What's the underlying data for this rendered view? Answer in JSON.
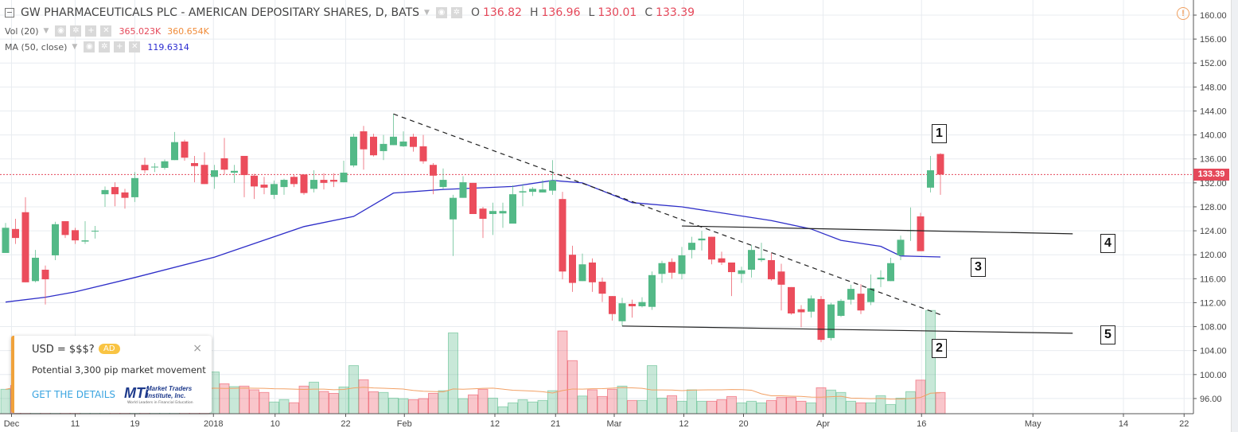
{
  "header": {
    "title": "GW PHARMACEUTICALS PLC - AMERICAN DEPOSITARY SHARES, D, BATS",
    "ohlc": [
      {
        "key": "O",
        "value": "136.82"
      },
      {
        "key": "H",
        "value": "136.96"
      },
      {
        "key": "L",
        "value": "130.01"
      },
      {
        "key": "C",
        "value": "133.39"
      }
    ]
  },
  "indicators": {
    "volume": {
      "label": "Vol (20)",
      "value": "365.023K",
      "ma_value": "360.654K"
    },
    "ma": {
      "label": "MA (50, close)",
      "value": "119.6314"
    }
  },
  "last_price_tag": "133.39",
  "ad": {
    "title": "USD = $$$?",
    "badge": "AD",
    "close": "×",
    "text": "Potential 3,300 pip market movement",
    "link": "GET THE DETAILS",
    "logo_text": "MTi Market Traders Institute, Inc. World Leaders in Financial Education"
  },
  "annotations": [
    "1",
    "2",
    "3",
    "4",
    "5"
  ],
  "colors": {
    "up": "#53b987",
    "down": "#eb4d5c",
    "ma": "#2e2ec8",
    "vol_ma": "#f2a166",
    "last": "#e5485a"
  },
  "chart_data": {
    "type": "candlestick",
    "title": "GW PHARMACEUTICALS PLC - AMERICAN DEPOSITARY SHARES, D, BATS",
    "ylim": [
      94,
      162
    ],
    "y_ticks": [
      "160.00",
      "156.00",
      "152.00",
      "148.00",
      "144.00",
      "140.00",
      "136.00",
      "132.00",
      "128.00",
      "124.00",
      "120.00",
      "116.00",
      "112.00",
      "108.00",
      "104.00",
      "100.00",
      "96.00"
    ],
    "x_ticks": [
      {
        "label": "Dec",
        "bar": 1.6
      },
      {
        "label": "11",
        "bar": 8
      },
      {
        "label": "19",
        "bar": 14
      },
      {
        "label": "2018",
        "bar": 21.9
      },
      {
        "label": "10",
        "bar": 28.1
      },
      {
        "label": "22",
        "bar": 35.2
      },
      {
        "label": "Feb",
        "bar": 41.1
      },
      {
        "label": "12",
        "bar": 50.2
      },
      {
        "label": "21",
        "bar": 56.3
      },
      {
        "label": "Mar",
        "bar": 62.2
      },
      {
        "label": "12",
        "bar": 69.2
      },
      {
        "label": "20",
        "bar": 75.2
      },
      {
        "label": "Apr",
        "bar": 83.2
      },
      {
        "label": "16",
        "bar": 93.1
      },
      {
        "label": "May",
        "bar": 104.3
      },
      {
        "label": "14",
        "bar": 113.4
      },
      {
        "label": "22",
        "bar": 119.5
      }
    ],
    "ohlc": [
      [
        120.3,
        125.3,
        120.3,
        124.5
      ],
      [
        124.3,
        126.0,
        121.8,
        122.8
      ],
      [
        127.1,
        129.6,
        115.4,
        115.4
      ],
      [
        115.6,
        120.8,
        115.4,
        119.5
      ],
      [
        117.5,
        118.2,
        111.7,
        115.9
      ],
      [
        119.9,
        125.5,
        119.1,
        125.1
      ],
      [
        125.6,
        125.6,
        122.8,
        123.3
      ],
      [
        124.1,
        124.5,
        121.8,
        122.4
      ],
      [
        122.2,
        125.6,
        121.8,
        122.4
      ],
      [
        124.0,
        124.8,
        122.7,
        124.0
      ],
      [
        130.1,
        131.4,
        128.0,
        130.8
      ],
      [
        131.3,
        132.1,
        128.1,
        130.1
      ],
      [
        130.4,
        131.0,
        127.7,
        129.5
      ],
      [
        129.6,
        133.8,
        128.8,
        132.8
      ],
      [
        135.0,
        136.2,
        133.6,
        134.1
      ],
      [
        134.6,
        135.3,
        133.8,
        134.7
      ],
      [
        134.5,
        135.9,
        134.2,
        135.6
      ],
      [
        135.8,
        140.5,
        135.8,
        138.8
      ],
      [
        138.9,
        139.2,
        135.7,
        136.2
      ],
      [
        135.3,
        136.5,
        132.1,
        134.8
      ],
      [
        135.0,
        137.1,
        131.8,
        131.8
      ],
      [
        133.0,
        135.0,
        131.0,
        134.1
      ],
      [
        136.1,
        139.5,
        133.4,
        134.2
      ],
      [
        133.7,
        135.0,
        132.0,
        134.0
      ],
      [
        136.5,
        136.5,
        129.6,
        133.3
      ],
      [
        133.2,
        133.5,
        129.3,
        131.4
      ],
      [
        131.7,
        133.0,
        130.1,
        131.2
      ],
      [
        130.0,
        132.4,
        129.3,
        131.8
      ],
      [
        131.3,
        132.7,
        130.0,
        132.5
      ],
      [
        133.0,
        133.4,
        131.3,
        131.8
      ],
      [
        133.4,
        133.4,
        130.0,
        130.3
      ],
      [
        131.0,
        134.1,
        130.4,
        132.5
      ],
      [
        132.5,
        133.6,
        130.9,
        132.0
      ],
      [
        132.5,
        133.6,
        131.3,
        132.2
      ],
      [
        132.1,
        135.7,
        132.1,
        133.7
      ],
      [
        134.9,
        140.2,
        134.6,
        139.7
      ],
      [
        140.6,
        141.5,
        134.2,
        137.6
      ],
      [
        139.7,
        140.2,
        136.4,
        136.6
      ],
      [
        137.3,
        140.0,
        135.8,
        138.5
      ],
      [
        138.3,
        143.5,
        138.3,
        139.7
      ],
      [
        138.1,
        140.6,
        138.0,
        138.9
      ],
      [
        139.7,
        140.2,
        137.2,
        138.0
      ],
      [
        138.1,
        140.0,
        135.2,
        135.6
      ],
      [
        135.0,
        135.3,
        130.1,
        133.2
      ],
      [
        131.3,
        134.4,
        131.0,
        132.5
      ],
      [
        125.9,
        130.0,
        119.8,
        129.5
      ],
      [
        129.5,
        133.1,
        129.5,
        132.1
      ],
      [
        132.0,
        132.0,
        126.8,
        126.8
      ],
      [
        127.7,
        128.0,
        122.8,
        126.0
      ],
      [
        126.8,
        128.7,
        123.3,
        127.3
      ],
      [
        126.9,
        128.7,
        124.5,
        127.3
      ],
      [
        125.2,
        131.6,
        125.2,
        130.1
      ],
      [
        130.4,
        131.8,
        128.1,
        130.6
      ],
      [
        130.5,
        131.3,
        129.8,
        131.0
      ],
      [
        130.4,
        132.5,
        130.4,
        130.9
      ],
      [
        130.7,
        135.8,
        130.0,
        132.4
      ],
      [
        129.3,
        130.5,
        115.9,
        117.2
      ],
      [
        120.0,
        121.5,
        113.8,
        115.3
      ],
      [
        115.6,
        120.2,
        115.6,
        118.4
      ],
      [
        118.7,
        119.4,
        113.8,
        115.4
      ],
      [
        115.5,
        116.2,
        112.1,
        113.5
      ],
      [
        113.1,
        113.1,
        109.0,
        110.1
      ],
      [
        108.9,
        112.8,
        108.1,
        111.9
      ],
      [
        111.8,
        112.5,
        109.5,
        111.4
      ],
      [
        111.4,
        112.9,
        111.2,
        112.1
      ],
      [
        111.3,
        117.2,
        110.8,
        116.6
      ],
      [
        116.8,
        119.0,
        115.3,
        118.6
      ],
      [
        118.8,
        119.4,
        116.0,
        117.0
      ],
      [
        116.8,
        121.3,
        115.9,
        119.9
      ],
      [
        120.8,
        123.0,
        119.4,
        122.0
      ],
      [
        122.4,
        124.0,
        120.7,
        122.7
      ],
      [
        123.0,
        123.0,
        118.4,
        119.2
      ],
      [
        119.4,
        120.5,
        118.3,
        118.7
      ],
      [
        118.7,
        118.7,
        113.1,
        117.1
      ],
      [
        116.8,
        118.0,
        115.3,
        117.4
      ],
      [
        117.5,
        121.6,
        116.2,
        120.8
      ],
      [
        119.1,
        122.0,
        118.8,
        119.4
      ],
      [
        119.1,
        120.3,
        115.7,
        115.9
      ],
      [
        117.2,
        118.5,
        110.7,
        115.0
      ],
      [
        114.6,
        114.6,
        110.0,
        110.2
      ],
      [
        110.9,
        111.6,
        107.9,
        110.4
      ],
      [
        110.5,
        113.2,
        109.5,
        112.7
      ],
      [
        112.6,
        113.1,
        105.4,
        105.8
      ],
      [
        106.1,
        112.0,
        105.7,
        111.7
      ],
      [
        109.8,
        112.6,
        109.6,
        112.3
      ],
      [
        112.5,
        115.0,
        111.7,
        114.3
      ],
      [
        113.5,
        115.1,
        110.1,
        110.7
      ],
      [
        112.1,
        116.7,
        111.6,
        114.4
      ],
      [
        115.9,
        117.4,
        114.6,
        116.2
      ],
      [
        115.6,
        119.5,
        115.6,
        118.6
      ],
      [
        119.9,
        123.2,
        119.1,
        122.5
      ],
      [
        124.0,
        127.9,
        122.3,
        124.1
      ],
      [
        126.4,
        127.0,
        120.6,
        120.6
      ],
      [
        131.2,
        136.5,
        130.4,
        134.1
      ],
      [
        136.82,
        136.96,
        130.01,
        133.39
      ]
    ],
    "volume_k": [
      345,
      400,
      520,
      350,
      300,
      380,
      330,
      280,
      250,
      220,
      480,
      350,
      320,
      450,
      300,
      260,
      280,
      520,
      380,
      330,
      340,
      590,
      423,
      383,
      390,
      338,
      300,
      165,
      200,
      155,
      390,
      446,
      315,
      287,
      378,
      680,
      480,
      310,
      300,
      220,
      213,
      198,
      213,
      287,
      325,
      1143,
      213,
      266,
      345,
      220,
      97,
      153,
      198,
      165,
      187,
      325,
      1170,
      750,
      250,
      338,
      243,
      345,
      390,
      187,
      187,
      680,
      220,
      255,
      176,
      338,
      176,
      176,
      198,
      243,
      153,
      176,
      153,
      187,
      232,
      232,
      176,
      153,
      367,
      334,
      300,
      176,
      153,
      153,
      255,
      130,
      220,
      312,
      475,
      1460,
      300
    ],
    "ma50": [
      [
        1,
        112.1
      ],
      [
        5,
        112.9
      ],
      [
        8,
        113.8
      ],
      [
        14,
        116.2
      ],
      [
        22,
        119.6
      ],
      [
        31,
        124.7
      ],
      [
        36,
        126.4
      ],
      [
        40,
        130.3
      ],
      [
        45,
        130.9
      ],
      [
        52,
        131.4
      ],
      [
        56,
        132.4
      ],
      [
        59,
        132.0
      ],
      [
        64,
        128.7
      ],
      [
        69,
        128.0
      ],
      [
        78,
        125.7
      ],
      [
        82,
        124.3
      ],
      [
        85,
        122.4
      ],
      [
        89,
        121.4
      ],
      [
        91,
        119.8
      ],
      [
        95,
        119.63
      ]
    ],
    "volume_ma_period": 20,
    "drawings": [
      {
        "name": "downtrend-line",
        "style": "dashed",
        "from": [
          40,
          143.5
        ],
        "to": [
          95,
          110.0
        ]
      },
      {
        "name": "resistance-line",
        "style": "solid",
        "from": [
          69,
          124.8
        ],
        "to": [
          108.3,
          123.5
        ]
      },
      {
        "name": "support-line",
        "style": "solid",
        "from": [
          63,
          108.1
        ],
        "to": [
          108.3,
          106.9
        ]
      }
    ],
    "last_price": 133.39
  }
}
